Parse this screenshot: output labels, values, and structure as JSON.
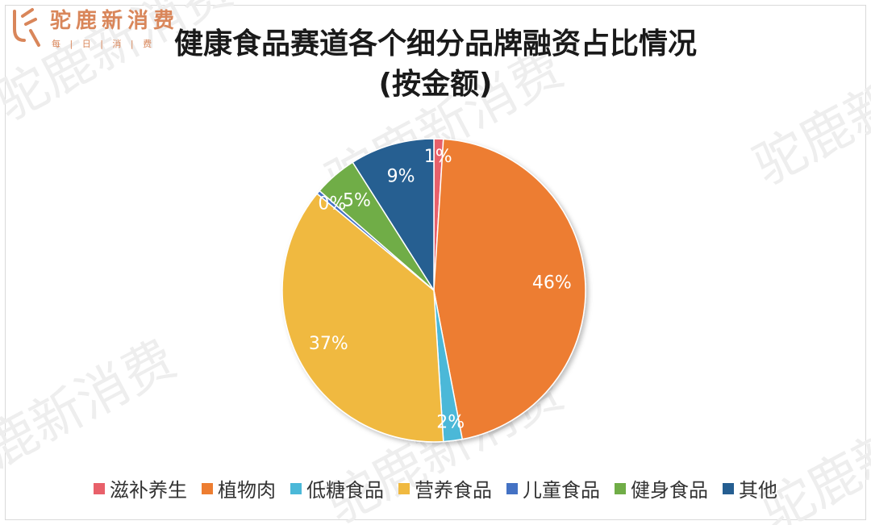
{
  "logo": {
    "text": "驼鹿新消费",
    "tagline": "每 | 日 | 消 | 费",
    "color": "#d9865a"
  },
  "watermark": {
    "text": "驼鹿新消费",
    "color": "#eeeeee"
  },
  "chart_data": {
    "type": "pie",
    "title_line1": "健康食品赛道各个细分品牌融资占比情况",
    "title_line2": "(按金额)",
    "slices": [
      {
        "name": "滋补养生",
        "value": 1,
        "label": "1%",
        "color": "#e8606a"
      },
      {
        "name": "植物肉",
        "value": 46,
        "label": "46%",
        "color": "#ed7d31"
      },
      {
        "name": "低糖食品",
        "value": 2,
        "label": "2%",
        "color": "#4bb8d8"
      },
      {
        "name": "营养食品",
        "value": 37,
        "label": "37%",
        "color": "#f0b940"
      },
      {
        "name": "儿童食品",
        "value": 0.4,
        "label": "0%",
        "color": "#4472c4"
      },
      {
        "name": "健身食品",
        "value": 4.6,
        "label": "5%",
        "color": "#70ad47"
      },
      {
        "name": "其他",
        "value": 9,
        "label": "9%",
        "color": "#255e91"
      }
    ],
    "legend_position": "bottom"
  }
}
